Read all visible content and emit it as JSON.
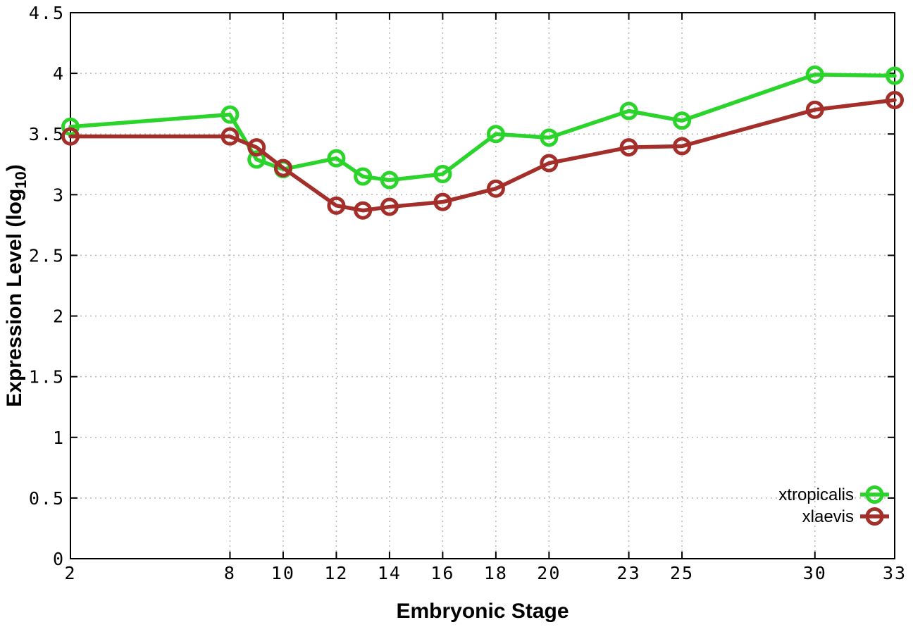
{
  "chart_data": {
    "type": "line",
    "title": "",
    "xlabel": "Embryonic Stage",
    "ylabel": {
      "prefix": "Expression Level (log",
      "subscript": "10",
      "suffix": ")"
    },
    "x": [
      2,
      8,
      9,
      10,
      12,
      13,
      14,
      16,
      18,
      20,
      23,
      25,
      30,
      33
    ],
    "series": [
      {
        "name": "xtropicalis",
        "color": "#2bd42b",
        "values": [
          3.56,
          3.66,
          3.29,
          3.21,
          3.3,
          3.15,
          3.12,
          3.17,
          3.5,
          3.47,
          3.69,
          3.61,
          3.99,
          3.98
        ]
      },
      {
        "name": "xlaevis",
        "color": "#a42f2a",
        "values": [
          3.48,
          3.48,
          3.39,
          3.22,
          2.91,
          2.87,
          2.9,
          2.94,
          3.05,
          3.26,
          3.39,
          3.4,
          3.7,
          3.78
        ]
      }
    ],
    "xticks": [
      2,
      8,
      10,
      12,
      14,
      16,
      18,
      20,
      23,
      25,
      30,
      33
    ],
    "yticks": [
      "0",
      "0.5",
      "1",
      "1.5",
      "2",
      "2.5",
      "3",
      "3.5",
      "4",
      "4.5"
    ],
    "xlim": [
      2,
      33
    ],
    "ylim": [
      0,
      4.5
    ],
    "grid": true,
    "legend_position": "bottom-right",
    "colors": {
      "background": "#ffffff",
      "border": "#000000",
      "grid": "#b8b8b8"
    }
  }
}
